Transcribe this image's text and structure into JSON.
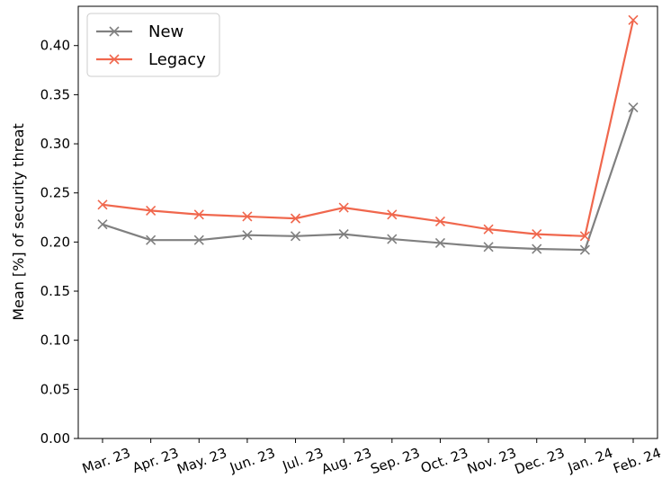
{
  "chart_data": {
    "type": "line",
    "title": "",
    "xlabel": "",
    "ylabel": "Mean [%] of security threat",
    "categories": [
      "Mar. 23",
      "Apr. 23",
      "May. 23",
      "Jun. 23",
      "Jul. 23",
      "Aug. 23",
      "Sep. 23",
      "Oct. 23",
      "Nov. 23",
      "Dec. 23",
      "Jan. 24",
      "Feb. 24"
    ],
    "ylim": [
      0.0,
      0.44
    ],
    "yticks": [
      "0.00",
      "0.05",
      "0.10",
      "0.15",
      "0.20",
      "0.25",
      "0.30",
      "0.35",
      "0.40"
    ],
    "grid": false,
    "legend_position": "top-left",
    "marker": "x",
    "series": [
      {
        "name": "New",
        "color": "#808080",
        "values": [
          0.218,
          0.202,
          0.202,
          0.207,
          0.206,
          0.208,
          0.203,
          0.199,
          0.195,
          0.193,
          0.192,
          0.337
        ]
      },
      {
        "name": "Legacy",
        "color": "#f0674d",
        "values": [
          0.238,
          0.232,
          0.228,
          0.226,
          0.224,
          0.235,
          0.228,
          0.221,
          0.213,
          0.208,
          0.206,
          0.426
        ]
      }
    ]
  }
}
